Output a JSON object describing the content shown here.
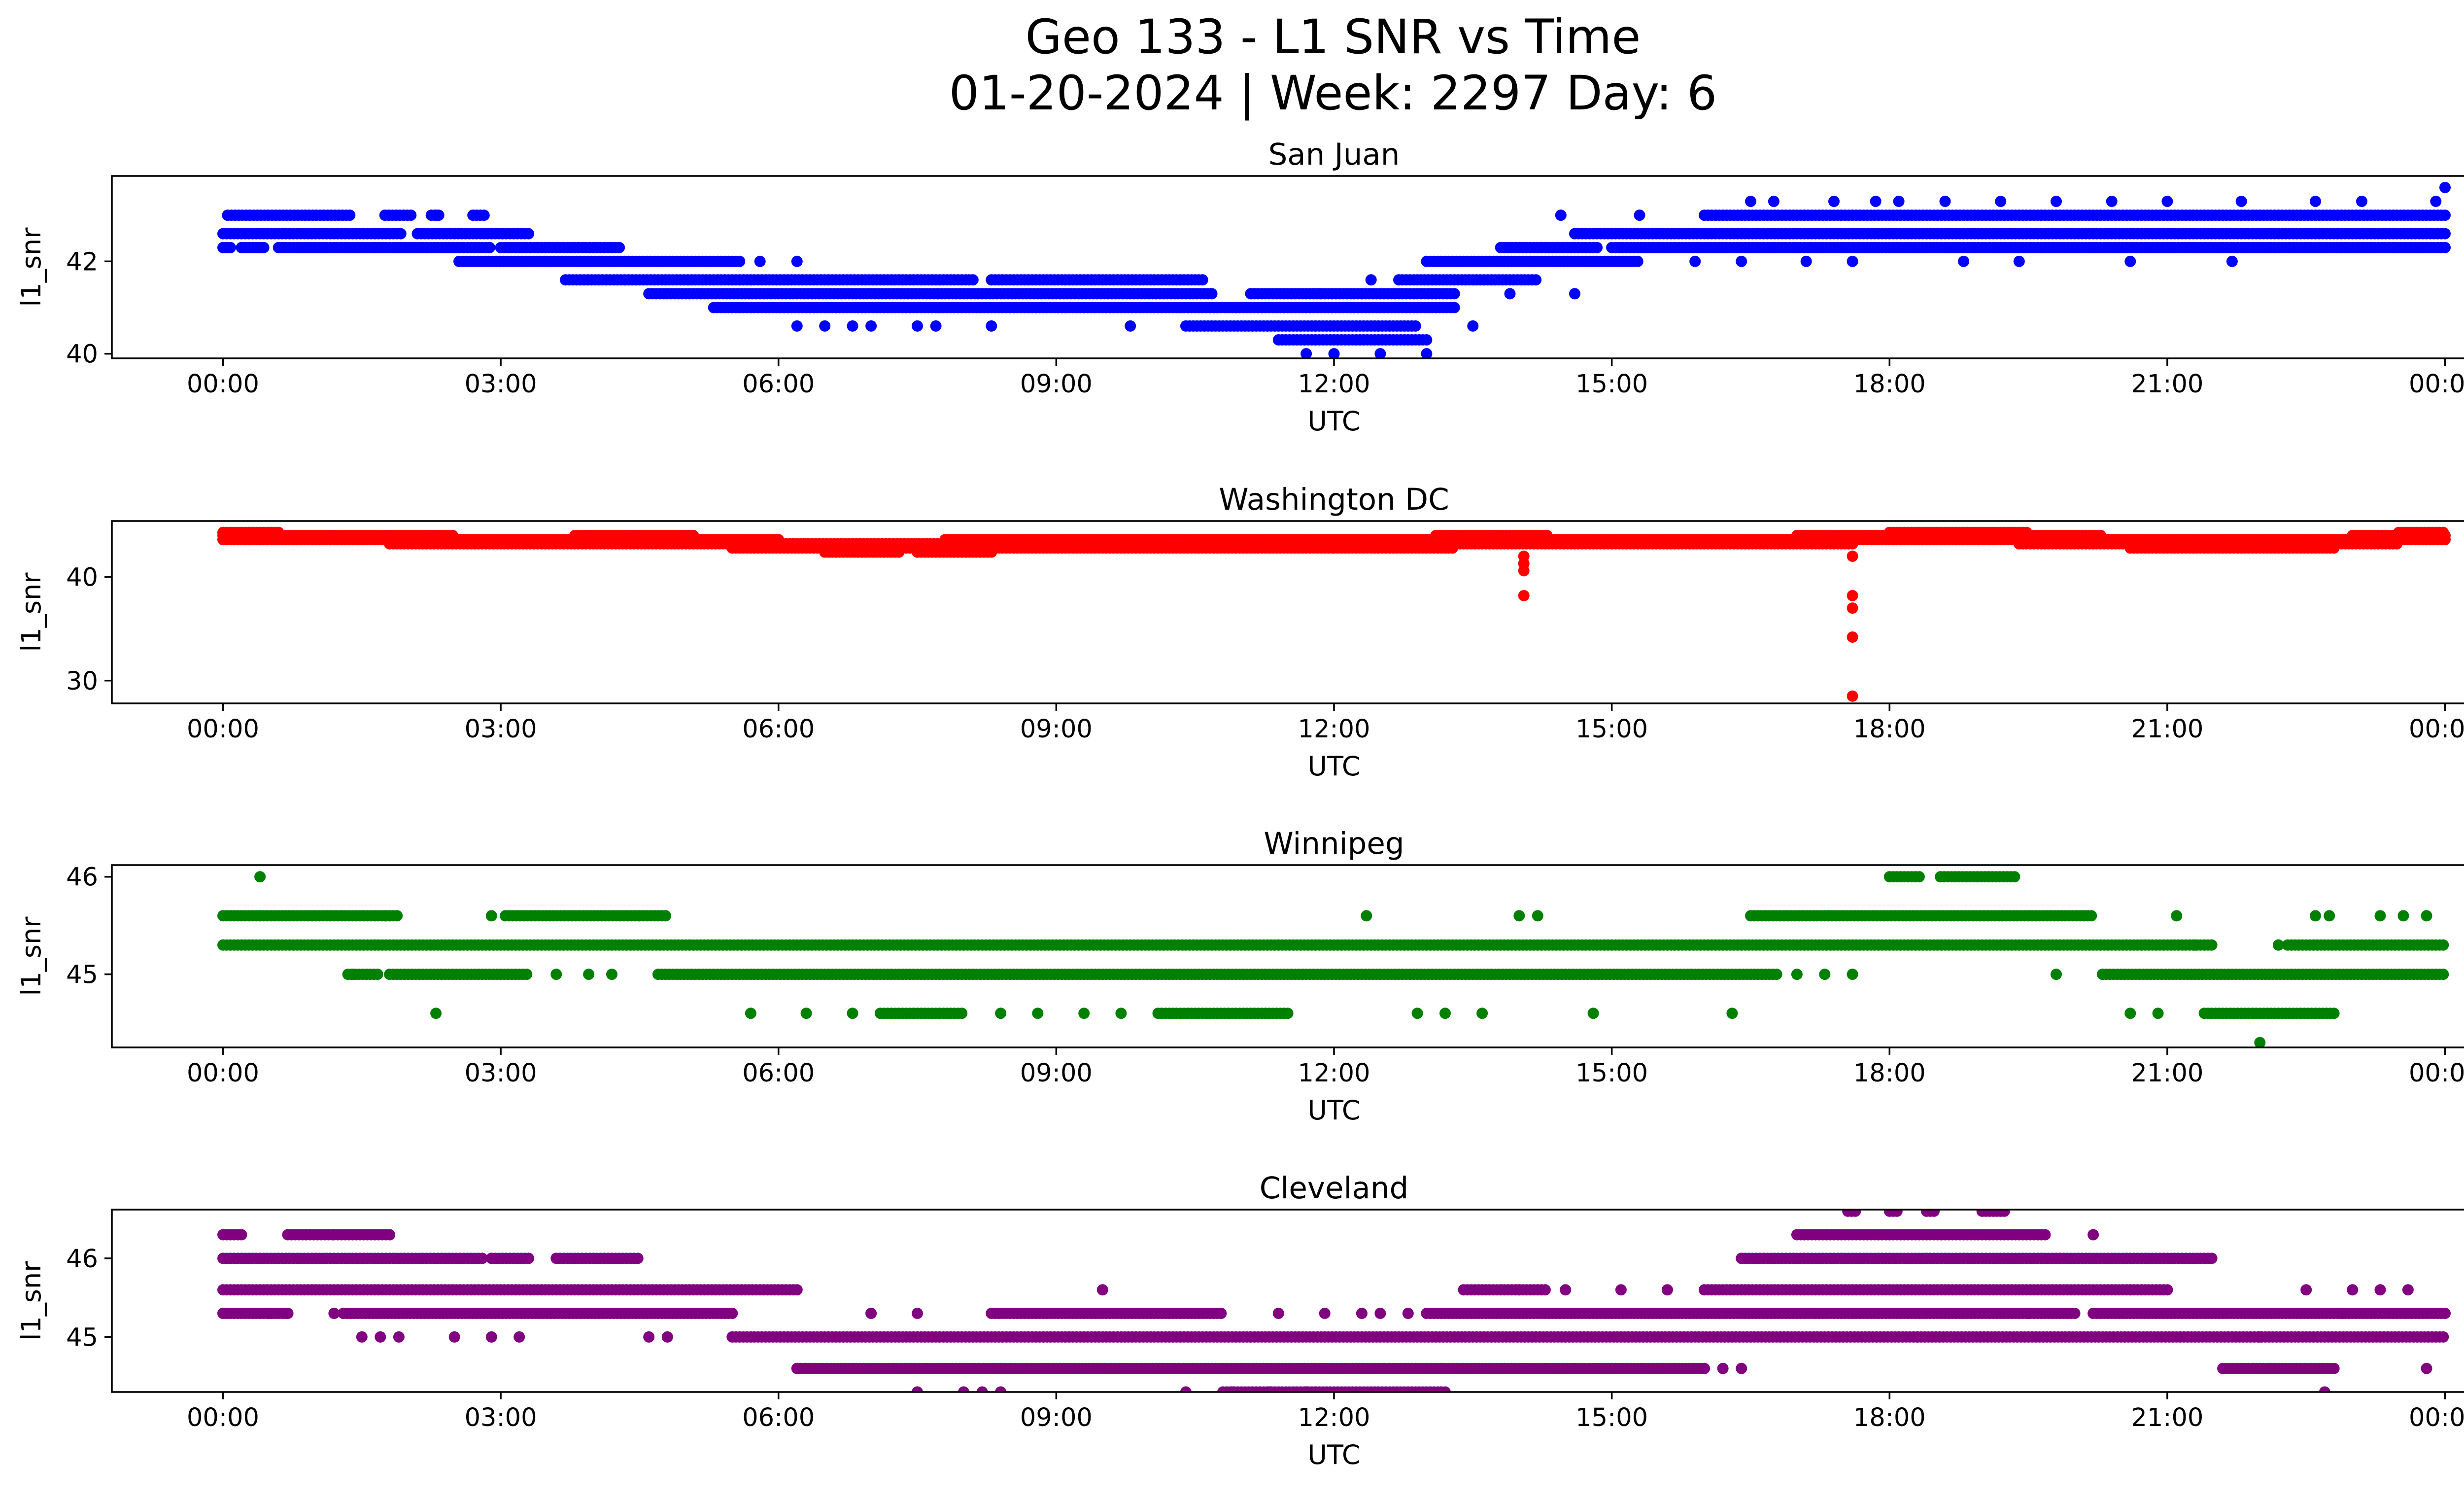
{
  "figure": {
    "title_line1": "Geo 133 - L1 SNR vs Time",
    "title_line2": "01-20-2024 | Week: 2297 Day: 6"
  },
  "chart_data": [
    {
      "type": "scatter",
      "title": "San Juan",
      "xlabel": "UTC",
      "ylabel": "l1_snr",
      "color": "#0000ff",
      "x_unit": "hours UTC",
      "xlim": [
        -1.2,
        25.2
      ],
      "ylim": [
        39.9,
        43.85
      ],
      "xticks": [
        0,
        3,
        6,
        9,
        12,
        15,
        18,
        21,
        24
      ],
      "xtick_labels": [
        "00:00",
        "03:00",
        "06:00",
        "09:00",
        "12:00",
        "15:00",
        "18:00",
        "21:00",
        "00:00"
      ],
      "yticks": [
        40,
        42
      ],
      "ytick_labels": [
        "40",
        "42"
      ],
      "bands": [
        {
          "y": 43.0,
          "ranges": [
            [
              0.05,
              1.4
            ],
            [
              1.75,
              2.05
            ],
            [
              2.25,
              2.35
            ],
            [
              2.7,
              2.85
            ],
            [
              16.0,
              24.0
            ]
          ]
        },
        {
          "y": 42.6,
          "ranges": [
            [
              0.0,
              1.95
            ],
            [
              2.1,
              3.3
            ],
            [
              14.6,
              24.0
            ]
          ]
        },
        {
          "y": 42.3,
          "ranges": [
            [
              0.0,
              0.1
            ],
            [
              0.2,
              0.45
            ],
            [
              0.6,
              2.9
            ],
            [
              3.0,
              4.3
            ],
            [
              13.8,
              14.85
            ],
            [
              15.0,
              24.0
            ]
          ]
        },
        {
          "y": 42.0,
          "ranges": [
            [
              2.55,
              3.5
            ],
            [
              3.5,
              5.6
            ],
            [
              13.0,
              15.3
            ]
          ]
        },
        {
          "y": 41.6,
          "ranges": [
            [
              3.7,
              8.1
            ],
            [
              8.3,
              10.6
            ],
            [
              12.7,
              14.2
            ]
          ]
        },
        {
          "y": 41.3,
          "ranges": [
            [
              4.6,
              10.7
            ],
            [
              11.1,
              13.3
            ]
          ]
        },
        {
          "y": 41.0,
          "ranges": [
            [
              5.3,
              13.3
            ]
          ]
        },
        {
          "y": 40.6,
          "ranges": [
            [
              10.4,
              12.9
            ]
          ]
        },
        {
          "y": 40.3,
          "ranges": [
            [
              11.4,
              13.0
            ]
          ]
        }
      ],
      "points": [
        [
          2.3,
          43.0
        ],
        [
          6.2,
          42.0
        ],
        [
          5.8,
          42.0
        ],
        [
          7.0,
          40.6
        ],
        [
          7.5,
          40.6
        ],
        [
          7.7,
          40.6
        ],
        [
          8.3,
          40.6
        ],
        [
          9.8,
          40.6
        ],
        [
          6.2,
          40.6
        ],
        [
          6.5,
          40.6
        ],
        [
          6.8,
          40.6
        ],
        [
          11.7,
          40.0
        ],
        [
          12.0,
          40.0
        ],
        [
          12.5,
          40.0
        ],
        [
          13.0,
          40.0
        ],
        [
          12.4,
          41.6
        ],
        [
          11.85,
          41.3
        ],
        [
          12.3,
          41.3
        ],
        [
          14.45,
          43.0
        ],
        [
          15.3,
          43.0
        ],
        [
          16.5,
          43.3
        ],
        [
          16.75,
          43.3
        ],
        [
          17.4,
          43.3
        ],
        [
          17.85,
          43.3
        ],
        [
          18.1,
          43.3
        ],
        [
          18.6,
          43.3
        ],
        [
          19.2,
          43.3
        ],
        [
          19.8,
          43.3
        ],
        [
          20.4,
          43.3
        ],
        [
          21.0,
          43.3
        ],
        [
          21.8,
          43.3
        ],
        [
          22.6,
          43.3
        ],
        [
          23.1,
          43.3
        ],
        [
          23.9,
          43.3
        ],
        [
          24.0,
          43.6
        ],
        [
          21.7,
          42.0
        ],
        [
          20.6,
          42.0
        ],
        [
          19.4,
          42.0
        ],
        [
          18.8,
          42.0
        ],
        [
          17.6,
          42.0
        ],
        [
          17.1,
          42.0
        ],
        [
          16.4,
          42.0
        ],
        [
          15.9,
          42.0
        ],
        [
          13.5,
          40.6
        ],
        [
          14.6,
          41.3
        ],
        [
          13.9,
          41.3
        ]
      ]
    },
    {
      "type": "scatter",
      "title": "Washington DC",
      "xlabel": "UTC",
      "ylabel": "l1_snr",
      "color": "#ff0000",
      "x_unit": "hours UTC",
      "xlim": [
        -1.2,
        25.2
      ],
      "ylim": [
        27.8,
        45.4
      ],
      "xticks": [
        0,
        3,
        6,
        9,
        12,
        15,
        18,
        21,
        24
      ],
      "xtick_labels": [
        "00:00",
        "03:00",
        "06:00",
        "09:00",
        "12:00",
        "15:00",
        "18:00",
        "21:00",
        "00:00"
      ],
      "yticks": [
        30,
        40
      ],
      "ytick_labels": [
        "30",
        "40"
      ],
      "bands": [
        {
          "y": 44.3,
          "ranges": [
            [
              0.0,
              0.6
            ],
            [
              18.0,
              19.5
            ],
            [
              23.5,
              24.0
            ]
          ]
        },
        {
          "y": 44.0,
          "ranges": [
            [
              0.0,
              2.5
            ],
            [
              3.8,
              5.1
            ],
            [
              13.1,
              14.3
            ],
            [
              17.0,
              20.3
            ],
            [
              23.0,
              24.0
            ]
          ]
        },
        {
          "y": 43.6,
          "ranges": [
            [
              0.0,
              6.0
            ],
            [
              7.8,
              10.4
            ],
            [
              10.2,
              24.0
            ]
          ]
        },
        {
          "y": 43.2,
          "ranges": [
            [
              1.8,
              9.4
            ],
            [
              10.0,
              17.6
            ],
            [
              19.4,
              23.5
            ]
          ]
        },
        {
          "y": 42.8,
          "ranges": [
            [
              5.5,
              12.0
            ],
            [
              12.0,
              13.3
            ],
            [
              20.6,
              22.8
            ]
          ]
        },
        {
          "y": 42.4,
          "ranges": [
            [
              6.5,
              7.3
            ],
            [
              7.5,
              8.3
            ]
          ]
        }
      ],
      "points": [
        [
          14.05,
          42.0
        ],
        [
          14.05,
          41.3
        ],
        [
          14.05,
          40.6
        ],
        [
          14.05,
          38.2
        ],
        [
          17.6,
          42.0
        ],
        [
          17.6,
          38.2
        ],
        [
          17.6,
          37.0
        ],
        [
          17.6,
          34.2
        ],
        [
          17.6,
          28.5
        ]
      ]
    },
    {
      "type": "scatter",
      "title": "Winnipeg",
      "xlabel": "UTC",
      "ylabel": "l1_snr",
      "color": "#008000",
      "x_unit": "hours UTC",
      "xlim": [
        -1.2,
        25.2
      ],
      "ylim": [
        44.25,
        46.12
      ],
      "xticks": [
        0,
        3,
        6,
        9,
        12,
        15,
        18,
        21,
        24
      ],
      "xtick_labels": [
        "00:00",
        "03:00",
        "06:00",
        "09:00",
        "12:00",
        "15:00",
        "18:00",
        "21:00",
        "00:00"
      ],
      "yticks": [
        45,
        46
      ],
      "ytick_labels": [
        "45",
        "46"
      ],
      "bands": [
        {
          "y": 46.0,
          "ranges": [
            [
              18.0,
              18.35
            ],
            [
              18.55,
              19.35
            ]
          ]
        },
        {
          "y": 45.6,
          "ranges": [
            [
              0.0,
              1.9
            ],
            [
              3.05,
              4.5
            ],
            [
              4.5,
              4.8
            ],
            [
              16.5,
              20.2
            ]
          ]
        },
        {
          "y": 45.3,
          "ranges": [
            [
              0.0,
              21.5
            ],
            [
              22.3,
              24.0
            ]
          ]
        },
        {
          "y": 45.0,
          "ranges": [
            [
              1.35,
              1.7
            ],
            [
              1.8,
              3.3
            ],
            [
              4.7,
              16.8
            ],
            [
              20.3,
              24.0
            ]
          ]
        },
        {
          "y": 44.6,
          "ranges": [
            [
              7.1,
              8.0
            ],
            [
              10.1,
              11.5
            ],
            [
              21.4,
              22.8
            ]
          ]
        }
      ],
      "points": [
        [
          0.4,
          46.0
        ],
        [
          2.3,
          44.6
        ],
        [
          5.7,
          44.6
        ],
        [
          6.3,
          44.6
        ],
        [
          6.8,
          44.6
        ],
        [
          8.4,
          44.6
        ],
        [
          8.8,
          44.6
        ],
        [
          9.3,
          44.6
        ],
        [
          9.7,
          44.6
        ],
        [
          12.9,
          44.6
        ],
        [
          13.2,
          44.6
        ],
        [
          13.6,
          44.6
        ],
        [
          14.8,
          44.6
        ],
        [
          16.3,
          44.6
        ],
        [
          20.6,
          44.6
        ],
        [
          20.9,
          44.6
        ],
        [
          22.0,
          44.3
        ],
        [
          1.75,
          45.6
        ],
        [
          2.9,
          45.6
        ],
        [
          3.6,
          45.0
        ],
        [
          4.2,
          45.0
        ],
        [
          3.95,
          45.0
        ],
        [
          12.35,
          45.6
        ],
        [
          14.0,
          45.6
        ],
        [
          14.2,
          45.6
        ],
        [
          17.0,
          45.0
        ],
        [
          17.3,
          45.0
        ],
        [
          17.6,
          45.0
        ],
        [
          19.8,
          45.0
        ],
        [
          21.1,
          45.6
        ],
        [
          22.6,
          45.6
        ],
        [
          23.3,
          45.6
        ],
        [
          23.55,
          45.6
        ],
        [
          23.8,
          45.6
        ],
        [
          22.75,
          45.6
        ],
        [
          21.3,
          45.3
        ],
        [
          22.2,
          45.3
        ],
        [
          1.4,
          45.0
        ]
      ]
    },
    {
      "type": "scatter",
      "title": "Cleveland",
      "xlabel": "UTC",
      "ylabel": "l1_snr",
      "color": "#800080",
      "x_unit": "hours UTC",
      "xlim": [
        -1.2,
        25.2
      ],
      "ylim": [
        44.3,
        46.62
      ],
      "xticks": [
        0,
        3,
        6,
        9,
        12,
        15,
        18,
        21,
        24
      ],
      "xtick_labels": [
        "00:00",
        "03:00",
        "06:00",
        "09:00",
        "12:00",
        "15:00",
        "18:00",
        "21:00",
        "00:00"
      ],
      "yticks": [
        45,
        46
      ],
      "ytick_labels": [
        "45",
        "46"
      ],
      "bands": [
        {
          "y": 46.6,
          "ranges": [
            [
              17.55,
              17.65
            ],
            [
              18.0,
              18.1
            ],
            [
              18.4,
              18.5
            ],
            [
              19.0,
              19.25
            ]
          ]
        },
        {
          "y": 46.3,
          "ranges": [
            [
              0.0,
              0.2
            ],
            [
              0.7,
              1.2
            ],
            [
              1.2,
              1.8
            ],
            [
              17.0,
              19.7
            ]
          ]
        },
        {
          "y": 46.0,
          "ranges": [
            [
              0.0,
              2.8
            ],
            [
              2.9,
              3.3
            ],
            [
              3.6,
              4.5
            ],
            [
              16.4,
              21.5
            ]
          ]
        },
        {
          "y": 45.6,
          "ranges": [
            [
              0.0,
              6.2
            ],
            [
              13.4,
              14.3
            ],
            [
              16.0,
              21.0
            ]
          ]
        },
        {
          "y": 45.3,
          "ranges": [
            [
              0.0,
              0.7
            ],
            [
              1.3,
              5.5
            ],
            [
              8.3,
              10.8
            ],
            [
              13.0,
              20.0
            ],
            [
              20.2,
              24.0
            ]
          ]
        },
        {
          "y": 45.0,
          "ranges": [
            [
              5.5,
              24.0
            ]
          ]
        },
        {
          "y": 44.6,
          "ranges": [
            [
              6.2,
              16.0
            ],
            [
              21.6,
              22.8
            ]
          ]
        },
        {
          "y": 44.3,
          "ranges": [
            [
              10.8,
              11.8
            ],
            [
              11.8,
              13.2
            ]
          ]
        }
      ],
      "points": [
        [
          0.5,
          45.3
        ],
        [
          0.7,
          45.3
        ],
        [
          1.2,
          45.3
        ],
        [
          1.5,
          45.0
        ],
        [
          1.7,
          45.0
        ],
        [
          1.9,
          45.0
        ],
        [
          2.5,
          45.0
        ],
        [
          2.9,
          45.0
        ],
        [
          3.2,
          45.0
        ],
        [
          4.6,
          45.0
        ],
        [
          4.8,
          45.0
        ],
        [
          7.5,
          44.3
        ],
        [
          8.0,
          44.3
        ],
        [
          8.2,
          44.3
        ],
        [
          8.4,
          44.3
        ],
        [
          9.5,
          45.6
        ],
        [
          10.4,
          44.3
        ],
        [
          10.9,
          44.3
        ],
        [
          11.3,
          44.3
        ],
        [
          11.7,
          44.3
        ],
        [
          6.3,
          44.6
        ],
        [
          7.0,
          45.3
        ],
        [
          7.5,
          45.3
        ],
        [
          11.4,
          45.3
        ],
        [
          11.9,
          45.3
        ],
        [
          12.3,
          45.3
        ],
        [
          12.5,
          45.3
        ],
        [
          12.8,
          45.3
        ],
        [
          14.0,
          45.6
        ],
        [
          14.5,
          45.6
        ],
        [
          15.1,
          45.6
        ],
        [
          15.6,
          45.6
        ],
        [
          16.2,
          44.6
        ],
        [
          16.4,
          44.6
        ],
        [
          17.2,
          45.3
        ],
        [
          17.6,
          45.3
        ],
        [
          18.3,
          45.0
        ],
        [
          18.8,
          45.3
        ],
        [
          19.2,
          45.3
        ],
        [
          19.5,
          45.3
        ],
        [
          20.2,
          46.3
        ],
        [
          20.6,
          45.6
        ],
        [
          22.0,
          45.0
        ],
        [
          22.1,
          44.6
        ],
        [
          22.5,
          45.6
        ],
        [
          22.7,
          44.3
        ],
        [
          23.0,
          45.6
        ],
        [
          23.3,
          45.6
        ],
        [
          23.6,
          45.6
        ],
        [
          23.8,
          44.6
        ],
        [
          22.9,
          45.3
        ]
      ]
    }
  ]
}
